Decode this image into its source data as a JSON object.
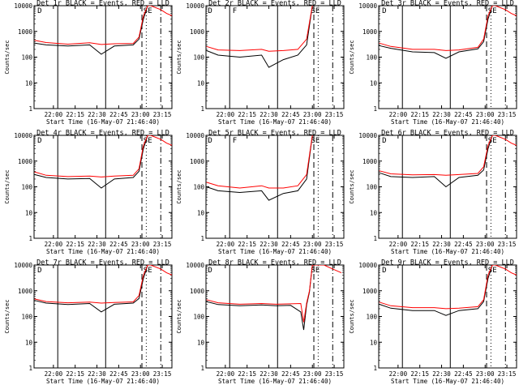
{
  "shared": {
    "xlabel": "Start Time (16-May-07 21:46:40)",
    "ylabel": "Counts/sec",
    "x_ticks": [
      "22:00",
      "22:15",
      "22:30",
      "22:45",
      "23:00",
      "23:15"
    ],
    "y_ticks": [
      "1",
      "10",
      "100",
      "1000",
      "10000"
    ],
    "x_range_minutes_after_start": [
      0,
      95
    ],
    "y_range": [
      1,
      10000
    ],
    "y_scale": "log",
    "colors": {
      "events": "#000000",
      "lld": "#ff0000",
      "axes": "#000000"
    }
  },
  "chart_data": [
    {
      "type": "line",
      "title": "Det 1r BLACK = Events, RED = LLD",
      "markers": [
        {
          "label": "D",
          "x": "21:49"
        },
        {
          "label": "SE",
          "x": "23:02"
        }
      ],
      "series": [
        {
          "name": "Events",
          "x": [
            "21:47",
            "21:55",
            "22:10",
            "22:25",
            "22:33",
            "22:42",
            "22:55",
            "22:59",
            "23:02",
            "23:05"
          ],
          "values": [
            350,
            300,
            270,
            300,
            130,
            270,
            300,
            500,
            3000,
            10000
          ]
        },
        {
          "name": "LLD",
          "x": [
            "21:47",
            "21:55",
            "22:10",
            "22:25",
            "22:33",
            "22:42",
            "22:55",
            "22:59",
            "23:02",
            "23:05",
            "23:07",
            "23:14",
            "23:18",
            "23:22"
          ],
          "values": [
            450,
            370,
            320,
            360,
            310,
            330,
            340,
            600,
            4000,
            10000,
            10000,
            7000,
            5000,
            4000
          ]
        }
      ]
    },
    {
      "type": "line",
      "title": "Det 2r BLACK = Events, RED = LLD",
      "markers": [
        {
          "label": "D",
          "x": "21:48"
        },
        {
          "label": "F",
          "x": "22:05"
        },
        {
          "label": "SE",
          "x": "22:59"
        }
      ],
      "series": [
        {
          "name": "Events",
          "x": [
            "21:47",
            "21:55",
            "22:10",
            "22:25",
            "22:30",
            "22:40",
            "22:50",
            "22:56",
            "23:00"
          ],
          "values": [
            180,
            120,
            100,
            120,
            40,
            80,
            120,
            300,
            10000
          ]
        },
        {
          "name": "LLD",
          "x": [
            "21:47",
            "21:55",
            "22:10",
            "22:25",
            "22:30",
            "22:40",
            "22:50",
            "22:56",
            "23:00"
          ],
          "values": [
            260,
            190,
            180,
            200,
            170,
            180,
            200,
            500,
            10000
          ]
        }
      ]
    },
    {
      "type": "line",
      "title": "Det 3r BLACK = Events, RED = LLD",
      "markers": [
        {
          "label": "D",
          "x": "21:49"
        },
        {
          "label": "SE",
          "x": "23:02"
        }
      ],
      "series": [
        {
          "name": "Events",
          "x": [
            "21:47",
            "21:55",
            "22:10",
            "22:25",
            "22:33",
            "22:42",
            "22:55",
            "22:59",
            "23:02",
            "23:05"
          ],
          "values": [
            280,
            220,
            160,
            150,
            90,
            160,
            210,
            400,
            3000,
            10000
          ]
        },
        {
          "name": "LLD",
          "x": [
            "21:47",
            "21:55",
            "22:10",
            "22:25",
            "22:33",
            "22:42",
            "22:55",
            "22:59",
            "23:02",
            "23:05",
            "23:07",
            "23:14",
            "23:18",
            "23:22"
          ],
          "values": [
            350,
            260,
            200,
            200,
            180,
            190,
            240,
            500,
            4000,
            10000,
            10000,
            7000,
            5000,
            4000
          ]
        }
      ]
    },
    {
      "type": "line",
      "title": "Det 4r BLACK = Events, RED = LLD",
      "markers": [
        {
          "label": "D",
          "x": "21:49"
        },
        {
          "label": "SE",
          "x": "23:02"
        }
      ],
      "series": [
        {
          "name": "Events",
          "x": [
            "21:47",
            "21:55",
            "22:10",
            "22:25",
            "22:33",
            "22:42",
            "22:55",
            "22:59",
            "23:02",
            "23:05"
          ],
          "values": [
            300,
            230,
            200,
            210,
            90,
            200,
            230,
            400,
            3000,
            10000
          ]
        },
        {
          "name": "LLD",
          "x": [
            "21:47",
            "21:55",
            "22:10",
            "22:25",
            "22:33",
            "22:42",
            "22:55",
            "22:59",
            "23:02",
            "23:05",
            "23:07",
            "23:14",
            "23:18",
            "23:22"
          ],
          "values": [
            380,
            280,
            250,
            260,
            240,
            260,
            280,
            500,
            4000,
            10000,
            10000,
            7000,
            5000,
            4000
          ]
        }
      ]
    },
    {
      "type": "line",
      "title": "Det 5r BLACK = Events, RED = LLD",
      "markers": [
        {
          "label": "D",
          "x": "21:48"
        },
        {
          "label": "F",
          "x": "22:05"
        },
        {
          "label": "SE",
          "x": "22:59"
        }
      ],
      "series": [
        {
          "name": "Events",
          "x": [
            "21:47",
            "21:55",
            "22:10",
            "22:25",
            "22:30",
            "22:40",
            "22:50",
            "22:56",
            "23:00"
          ],
          "values": [
            100,
            70,
            60,
            70,
            30,
            55,
            70,
            200,
            10000
          ]
        },
        {
          "name": "LLD",
          "x": [
            "21:47",
            "21:55",
            "22:10",
            "22:25",
            "22:30",
            "22:40",
            "22:50",
            "22:56",
            "23:00"
          ],
          "values": [
            150,
            110,
            90,
            110,
            90,
            90,
            110,
            300,
            10000
          ]
        }
      ]
    },
    {
      "type": "line",
      "title": "Det 6r BLACK = Events, RED = LLD",
      "markers": [
        {
          "label": "D",
          "x": "21:49"
        },
        {
          "label": "SE",
          "x": "23:02"
        }
      ],
      "series": [
        {
          "name": "Events",
          "x": [
            "21:47",
            "21:55",
            "22:10",
            "22:25",
            "22:33",
            "22:42",
            "22:55",
            "22:59",
            "23:02",
            "23:05"
          ],
          "values": [
            350,
            250,
            230,
            250,
            100,
            230,
            280,
            450,
            3000,
            10000
          ]
        },
        {
          "name": "LLD",
          "x": [
            "21:47",
            "21:55",
            "22:10",
            "22:25",
            "22:33",
            "22:42",
            "22:55",
            "22:59",
            "23:02",
            "23:05",
            "23:07",
            "23:14",
            "23:18",
            "23:22"
          ],
          "values": [
            420,
            320,
            290,
            300,
            280,
            300,
            330,
            600,
            4000,
            10000,
            10000,
            7000,
            5000,
            4000
          ]
        }
      ]
    },
    {
      "type": "line",
      "title": "Det 7r BLACK = Events, RED = LLD",
      "markers": [
        {
          "label": "D",
          "x": "21:49"
        },
        {
          "label": "SE",
          "x": "23:02"
        }
      ],
      "series": [
        {
          "name": "Events",
          "x": [
            "21:47",
            "21:55",
            "22:10",
            "22:25",
            "22:33",
            "22:42",
            "22:55",
            "22:59",
            "23:02",
            "23:05"
          ],
          "values": [
            420,
            330,
            290,
            320,
            150,
            300,
            330,
            500,
            3000,
            10000
          ]
        },
        {
          "name": "LLD",
          "x": [
            "21:47",
            "21:55",
            "22:10",
            "22:25",
            "22:33",
            "22:42",
            "22:55",
            "22:59",
            "23:02",
            "23:05",
            "23:07",
            "23:14",
            "23:18",
            "23:22"
          ],
          "values": [
            480,
            380,
            340,
            360,
            330,
            350,
            370,
            650,
            4000,
            10000,
            10000,
            7000,
            5000,
            4000
          ]
        }
      ]
    },
    {
      "type": "line",
      "title": "Det 8r BLACK = Events, RED = LLD",
      "markers": [
        {
          "label": "D",
          "x": "21:48"
        },
        {
          "label": "SE",
          "x": "22:59"
        }
      ],
      "series": [
        {
          "name": "Events",
          "x": [
            "21:47",
            "21:55",
            "22:10",
            "22:25",
            "22:35",
            "22:45",
            "22:52",
            "22:54",
            "22:56",
            "22:58",
            "23:00"
          ],
          "values": [
            380,
            290,
            260,
            280,
            260,
            270,
            150,
            30,
            280,
            900,
            10000
          ]
        },
        {
          "name": "LLD",
          "x": [
            "21:47",
            "21:55",
            "22:10",
            "22:25",
            "22:35",
            "22:45",
            "22:52",
            "22:54",
            "22:56",
            "22:58",
            "23:00",
            "23:08",
            "23:14",
            "23:20"
          ],
          "values": [
            450,
            340,
            300,
            320,
            300,
            310,
            320,
            60,
            330,
            1000,
            10000,
            10000,
            7000,
            5000
          ]
        }
      ]
    },
    {
      "type": "line",
      "title": "Det 9r BLACK = Events, RED = LLD",
      "markers": [
        {
          "label": "D",
          "x": "21:49"
        },
        {
          "label": "SE",
          "x": "23:02"
        }
      ],
      "series": [
        {
          "name": "Events",
          "x": [
            "21:47",
            "21:55",
            "22:10",
            "22:25",
            "22:33",
            "22:42",
            "22:55",
            "22:59",
            "23:02",
            "23:05"
          ],
          "values": [
            300,
            210,
            170,
            170,
            110,
            170,
            200,
            380,
            3000,
            10000
          ]
        },
        {
          "name": "LLD",
          "x": [
            "21:47",
            "21:55",
            "22:10",
            "22:25",
            "22:33",
            "22:42",
            "22:55",
            "22:59",
            "23:02",
            "23:05",
            "23:07",
            "23:14",
            "23:18",
            "23:22"
          ],
          "values": [
            360,
            260,
            220,
            220,
            200,
            210,
            240,
            450,
            4000,
            10000,
            10000,
            7000,
            5000,
            4000
          ]
        }
      ]
    }
  ]
}
